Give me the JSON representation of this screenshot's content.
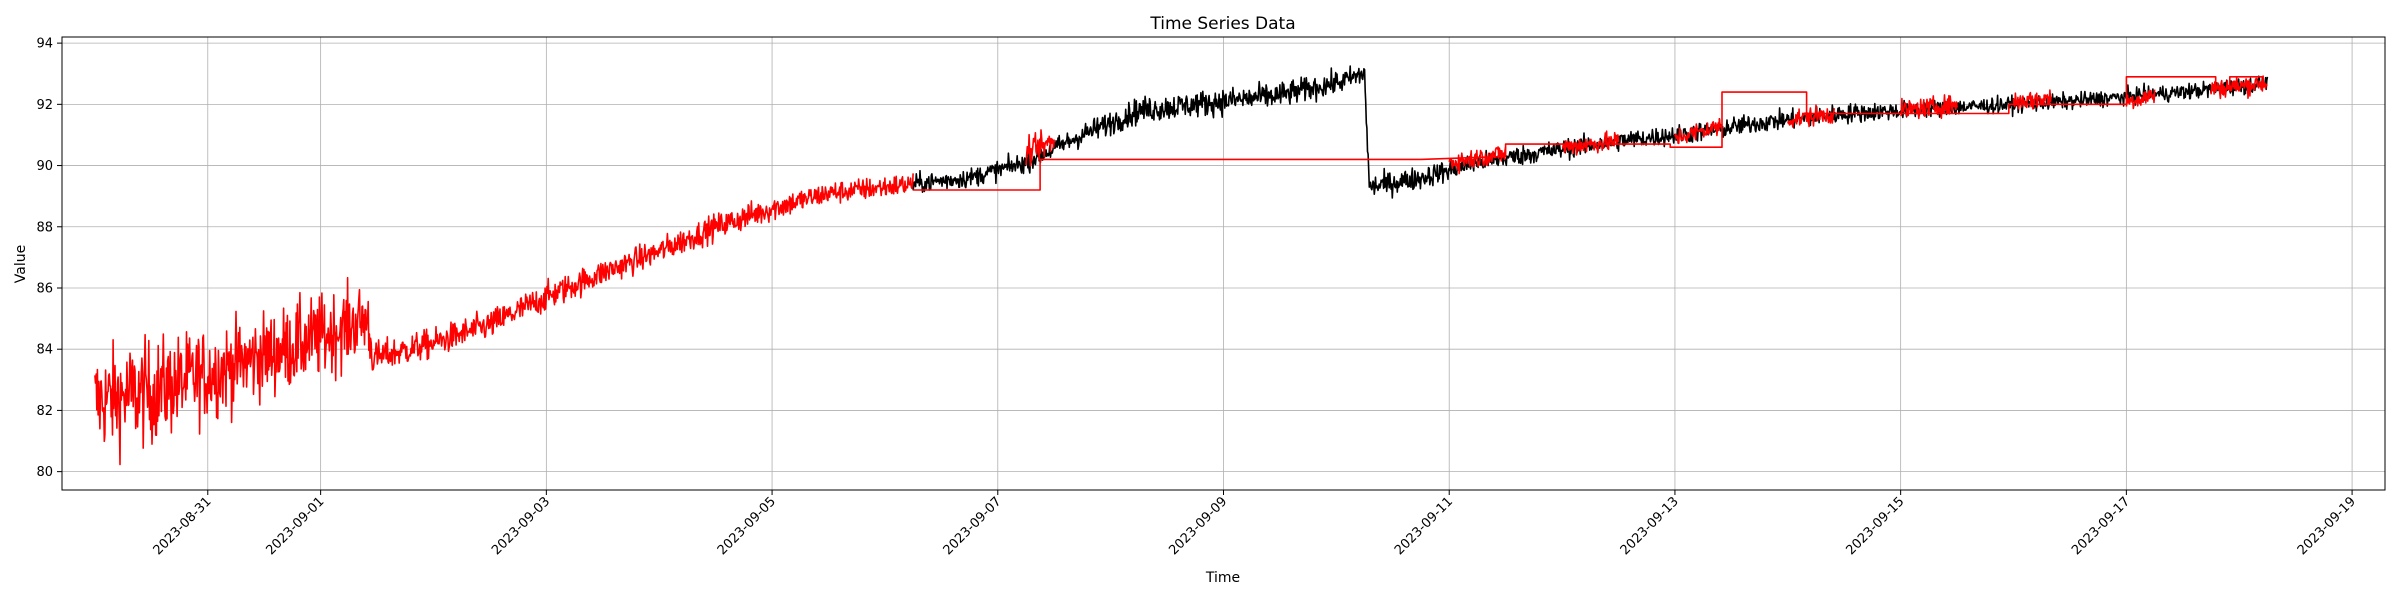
{
  "chart_data": {
    "type": "line",
    "title": "Time Series Data",
    "xlabel": "Time",
    "ylabel": "Value",
    "x_type": "date",
    "xlim": [
      "2023-08-29T17:00",
      "2023-09-19T07:00"
    ],
    "ylim": [
      79.4,
      94.2
    ],
    "x_ticks": [
      "2023-08-31",
      "2023-09-01",
      "2023-09-03",
      "2023-09-05",
      "2023-09-07",
      "2023-09-09",
      "2023-09-11",
      "2023-09-13",
      "2023-09-15",
      "2023-09-17",
      "2023-09-19"
    ],
    "y_ticks": [
      80,
      82,
      84,
      86,
      88,
      90,
      92,
      94
    ],
    "grid": true,
    "series": [
      {
        "color": "#ff0000",
        "noisy": true,
        "points": [
          [
            "2023-08-30T00:00",
            82.3,
            1.6
          ],
          [
            "2023-08-30T12:00",
            82.6,
            1.6
          ],
          [
            "2023-08-31T00:00",
            83.2,
            1.4
          ],
          [
            "2023-08-31T12:00",
            83.8,
            1.3
          ],
          [
            "2023-09-01T00:00",
            84.4,
            1.3
          ],
          [
            "2023-09-01T10:00",
            85.0,
            1.1
          ],
          [
            "2023-09-01T11:00",
            83.7,
            0.5
          ],
          [
            "2023-09-02T00:00",
            84.2,
            0.45
          ],
          [
            "2023-09-02T12:00",
            84.8,
            0.45
          ],
          [
            "2023-09-03T00:00",
            85.7,
            0.45
          ],
          [
            "2023-09-03T12:00",
            86.5,
            0.4
          ],
          [
            "2023-09-04T00:00",
            87.2,
            0.4
          ],
          [
            "2023-09-04T12:00",
            88.0,
            0.4
          ],
          [
            "2023-09-05T00:00",
            88.6,
            0.4
          ],
          [
            "2023-09-05T12:00",
            89.1,
            0.35
          ],
          [
            "2023-09-06T06:00",
            89.4,
            0.35
          ]
        ]
      },
      {
        "color": "#000000",
        "noisy": true,
        "points": [
          [
            "2023-09-06T06:00",
            89.4,
            0.3
          ],
          [
            "2023-09-06T18:00",
            89.6,
            0.3
          ],
          [
            "2023-09-07T06:00",
            90.1,
            0.3
          ],
          [
            "2023-09-07T18:00",
            91.0,
            0.35
          ],
          [
            "2023-09-08T06:00",
            91.8,
            0.4
          ],
          [
            "2023-09-08T18:00",
            92.0,
            0.4
          ],
          [
            "2023-09-09T12:00",
            92.3,
            0.4
          ],
          [
            "2023-09-10T00:00",
            92.7,
            0.35
          ],
          [
            "2023-09-10T06:00",
            93.0,
            0.35
          ],
          [
            "2023-09-10T07:00",
            89.3,
            0.35
          ],
          [
            "2023-09-10T18:00",
            89.6,
            0.35
          ],
          [
            "2023-09-11T06:00",
            90.1,
            0.3
          ],
          [
            "2023-09-11T18:00",
            90.4,
            0.3
          ],
          [
            "2023-09-12T12:00",
            90.8,
            0.3
          ],
          [
            "2023-09-13T06:00",
            91.1,
            0.3
          ],
          [
            "2023-09-13T18:00",
            91.4,
            0.3
          ],
          [
            "2023-09-14T12:00",
            91.7,
            0.3
          ],
          [
            "2023-09-15T12:00",
            91.9,
            0.25
          ],
          [
            "2023-09-16T12:00",
            92.1,
            0.25
          ],
          [
            "2023-09-17T12:00",
            92.4,
            0.25
          ],
          [
            "2023-09-18T06:00",
            92.7,
            0.25
          ]
        ]
      },
      {
        "color": "#ff0000",
        "noisy": true,
        "points": [
          [
            "2023-09-07T06:00",
            90.4,
            0.4
          ],
          [
            "2023-09-07T12:00",
            90.8,
            0.4
          ]
        ]
      },
      {
        "color": "#ff0000",
        "noisy": true,
        "points": [
          [
            "2023-09-11T00:00",
            90.1,
            0.3
          ],
          [
            "2023-09-11T12:00",
            90.4,
            0.3
          ]
        ]
      },
      {
        "color": "#ff0000",
        "noisy": true,
        "points": [
          [
            "2023-09-12T00:00",
            90.6,
            0.3
          ],
          [
            "2023-09-12T12:00",
            90.8,
            0.3
          ]
        ]
      },
      {
        "color": "#ff0000",
        "noisy": true,
        "points": [
          [
            "2023-09-13T00:00",
            90.9,
            0.3
          ],
          [
            "2023-09-13T10:00",
            91.3,
            0.3
          ]
        ]
      },
      {
        "color": "#ff0000",
        "noisy": true,
        "points": [
          [
            "2023-09-14T00:00",
            91.5,
            0.3
          ],
          [
            "2023-09-14T10:00",
            91.7,
            0.3
          ]
        ]
      },
      {
        "color": "#ff0000",
        "noisy": true,
        "points": [
          [
            "2023-09-15T00:00",
            91.8,
            0.3
          ],
          [
            "2023-09-15T12:00",
            92.0,
            0.3
          ]
        ]
      },
      {
        "color": "#ff0000",
        "noisy": true,
        "points": [
          [
            "2023-09-16T00:00",
            92.1,
            0.3
          ],
          [
            "2023-09-16T08:00",
            92.2,
            0.3
          ]
        ]
      },
      {
        "color": "#ff0000",
        "noisy": true,
        "points": [
          [
            "2023-09-17T00:00",
            92.1,
            0.3
          ],
          [
            "2023-09-17T06:00",
            92.3,
            0.3
          ]
        ]
      },
      {
        "color": "#ff0000",
        "noisy": true,
        "points": [
          [
            "2023-09-17T18:00",
            92.5,
            0.3
          ],
          [
            "2023-09-18T06:00",
            92.7,
            0.3
          ]
        ]
      },
      {
        "color": "#ff0000",
        "noisy": false,
        "points": [
          [
            "2023-09-06T06:00",
            89.2
          ],
          [
            "2023-09-07T09:00",
            89.2
          ],
          [
            "2023-09-07T09:00",
            90.2
          ],
          [
            "2023-09-10T18:00",
            90.2
          ],
          [
            "2023-09-11T12:00",
            90.3
          ],
          [
            "2023-09-11T12:00",
            90.7
          ],
          [
            "2023-09-12T23:00",
            90.7
          ],
          [
            "2023-09-12T23:00",
            90.6
          ],
          [
            "2023-09-13T10:00",
            90.6
          ],
          [
            "2023-09-13T10:00",
            92.4
          ],
          [
            "2023-09-14T04:00",
            92.4
          ],
          [
            "2023-09-14T04:00",
            91.7
          ],
          [
            "2023-09-15T23:00",
            91.7
          ],
          [
            "2023-09-15T23:00",
            92.0
          ],
          [
            "2023-09-17T00:00",
            92.0
          ],
          [
            "2023-09-17T00:00",
            92.9
          ],
          [
            "2023-09-17T19:00",
            92.9
          ],
          [
            "2023-09-17T19:00",
            92.5
          ],
          [
            "2023-09-17T22:00",
            92.5
          ],
          [
            "2023-09-17T22:00",
            92.9
          ],
          [
            "2023-09-18T05:00",
            92.9
          ]
        ]
      }
    ]
  }
}
